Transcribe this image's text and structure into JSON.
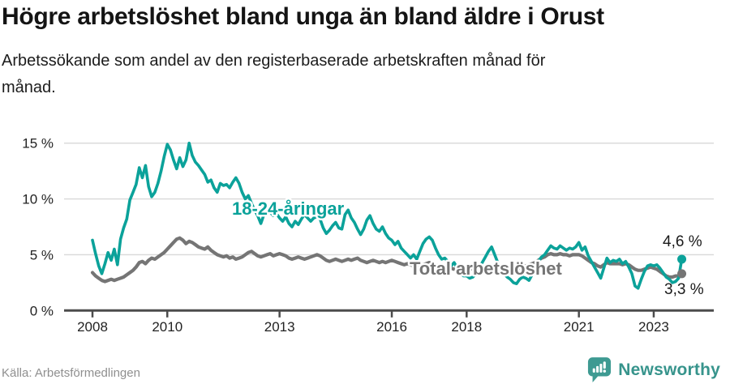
{
  "title": "Högre arbetslöshet bland unga än bland äldre i Orust",
  "subtitle_lines": [
    "Arbetssökande som andel av den registerbaserade arbetskraften månad för",
    "månad."
  ],
  "source": "Källa: Arbetsförmedlingen",
  "brand": {
    "name": "Newsworthy",
    "color": "#3E9A92"
  },
  "chart_data": {
    "type": "line",
    "title": "Högre arbetslöshet bland unga än bland äldre i Orust",
    "subtitle": "Arbetssökande som andel av den registerbaserade arbetskraften månad för månad.",
    "x_unit": "month",
    "x_range": [
      "2008-01",
      "2023-10"
    ],
    "ylim": [
      0,
      16
    ],
    "grid": "horizontal",
    "legend_position": "inline-annotations",
    "yticks": [
      {
        "value": 0,
        "label": "0 %"
      },
      {
        "value": 5,
        "label": "5 %"
      },
      {
        "value": 10,
        "label": "10 %"
      },
      {
        "value": 15,
        "label": "15 %"
      }
    ],
    "xticks": [
      {
        "year": 2008,
        "label": "2008"
      },
      {
        "year": 2010,
        "label": "2010"
      },
      {
        "year": 2013,
        "label": "2013"
      },
      {
        "year": 2016,
        "label": "2016"
      },
      {
        "year": 2018,
        "label": "2018"
      },
      {
        "year": 2021,
        "label": "2021"
      },
      {
        "year": 2023,
        "label": "2023"
      }
    ],
    "series": [
      {
        "name": "18-24-åringar",
        "color": "#0BA29A",
        "end_label": "4,6 %",
        "end_value": 4.6,
        "values": [
          6.3,
          5.1,
          4.0,
          3.3,
          4.2,
          5.2,
          4.5,
          5.5,
          4.1,
          6.4,
          7.4,
          8.2,
          9.9,
          10.6,
          11.3,
          12.8,
          11.9,
          13.0,
          11.1,
          10.2,
          10.6,
          11.4,
          12.5,
          13.8,
          14.9,
          14.4,
          13.5,
          12.7,
          13.7,
          12.9,
          13.5,
          15.0,
          13.9,
          13.3,
          13.0,
          12.6,
          12.2,
          11.5,
          11.7,
          11.0,
          10.6,
          11.4,
          11.2,
          11.3,
          11.0,
          11.5,
          11.9,
          11.4,
          10.6,
          10.0,
          10.3,
          9.6,
          9.0,
          8.5,
          7.8,
          8.6,
          9.4,
          8.8,
          8.5,
          8.7,
          8.3,
          8.0,
          8.4,
          7.8,
          7.5,
          8.0,
          7.7,
          8.2,
          8.6,
          8.3,
          8.0,
          8.3,
          8.4,
          8.2,
          7.4,
          6.9,
          7.2,
          7.6,
          7.9,
          7.4,
          7.3,
          8.6,
          9.0,
          8.3,
          7.9,
          7.3,
          6.8,
          7.3,
          8.1,
          8.5,
          7.8,
          7.3,
          7.1,
          7.5,
          6.9,
          6.5,
          6.3,
          5.9,
          6.2,
          5.6,
          5.3,
          5.0,
          4.7,
          5.0,
          4.6,
          5.3,
          6.0,
          6.4,
          6.6,
          6.3,
          5.6,
          5.0,
          4.6,
          4.7,
          4.4,
          4.0,
          4.3,
          3.8,
          3.4,
          3.1,
          3.1,
          2.9,
          3.0,
          3.3,
          3.8,
          4.3,
          4.8,
          5.3,
          5.7,
          5.0,
          4.3,
          3.7,
          3.3,
          3.0,
          2.8,
          2.5,
          2.4,
          2.8,
          3.0,
          2.9,
          2.7,
          3.2,
          3.8,
          4.4,
          4.8,
          5.0,
          5.4,
          5.8,
          5.6,
          5.5,
          5.8,
          5.6,
          5.4,
          5.6,
          5.5,
          5.7,
          6.1,
          5.4,
          5.7,
          4.9,
          4.4,
          3.9,
          3.4,
          2.9,
          3.8,
          4.7,
          4.3,
          4.5,
          4.4,
          4.6,
          4.2,
          4.4,
          3.9,
          3.3,
          2.2,
          2.0,
          2.8,
          3.5,
          4.0,
          4.1,
          4.0,
          4.1,
          3.8,
          3.4,
          3.0,
          2.8,
          2.5,
          2.6,
          2.9,
          4.6
        ]
      },
      {
        "name": "Total arbetslöshet",
        "color": "#757575",
        "end_label": "3,3 %",
        "end_value": 3.3,
        "values": [
          3.4,
          3.1,
          2.9,
          2.7,
          2.6,
          2.7,
          2.8,
          2.7,
          2.8,
          2.9,
          3.0,
          3.2,
          3.4,
          3.6,
          3.9,
          4.3,
          4.4,
          4.2,
          4.5,
          4.7,
          4.6,
          4.8,
          5.0,
          5.2,
          5.5,
          5.8,
          6.1,
          6.4,
          6.5,
          6.3,
          6.0,
          6.2,
          6.1,
          5.9,
          5.7,
          5.6,
          5.5,
          5.7,
          5.4,
          5.2,
          5.0,
          4.9,
          4.8,
          4.9,
          4.7,
          4.8,
          4.6,
          4.7,
          4.8,
          5.0,
          5.2,
          5.3,
          5.1,
          4.9,
          4.8,
          4.9,
          5.0,
          5.1,
          4.9,
          5.0,
          5.1,
          5.0,
          4.9,
          4.7,
          4.6,
          4.7,
          4.8,
          4.7,
          4.6,
          4.7,
          4.8,
          4.9,
          5.0,
          4.9,
          4.7,
          4.5,
          4.4,
          4.5,
          4.6,
          4.5,
          4.4,
          4.5,
          4.6,
          4.5,
          4.6,
          4.7,
          4.5,
          4.4,
          4.3,
          4.4,
          4.5,
          4.4,
          4.3,
          4.4,
          4.3,
          4.4,
          4.5,
          4.4,
          4.3,
          4.2,
          4.1,
          4.2,
          4.1,
          4.0,
          4.1,
          4.0,
          4.1,
          4.2,
          4.3,
          4.2,
          4.1,
          4.0,
          3.9,
          3.8,
          3.9,
          3.8,
          3.7,
          3.8,
          3.9,
          4.0,
          3.9,
          3.8,
          3.7,
          3.6,
          3.7,
          3.8,
          3.9,
          3.8,
          3.7,
          3.8,
          3.9,
          4.0,
          3.9,
          3.8,
          3.7,
          3.8,
          3.7,
          3.8,
          3.9,
          4.0,
          4.1,
          4.2,
          4.3,
          4.5,
          4.7,
          4.8,
          5.0,
          5.1,
          5.0,
          5.0,
          5.1,
          5.0,
          5.0,
          4.9,
          5.0,
          5.0,
          5.0,
          4.9,
          4.7,
          4.5,
          4.3,
          4.2,
          4.0,
          3.9,
          4.1,
          4.3,
          4.2,
          4.2,
          4.2,
          4.2,
          4.1,
          4.2,
          4.1,
          3.9,
          3.7,
          3.6,
          3.6,
          3.7,
          3.8,
          3.9,
          3.8,
          3.7,
          3.5,
          3.3,
          3.1,
          3.0,
          3.0,
          3.1,
          3.1,
          3.3
        ]
      }
    ]
  }
}
